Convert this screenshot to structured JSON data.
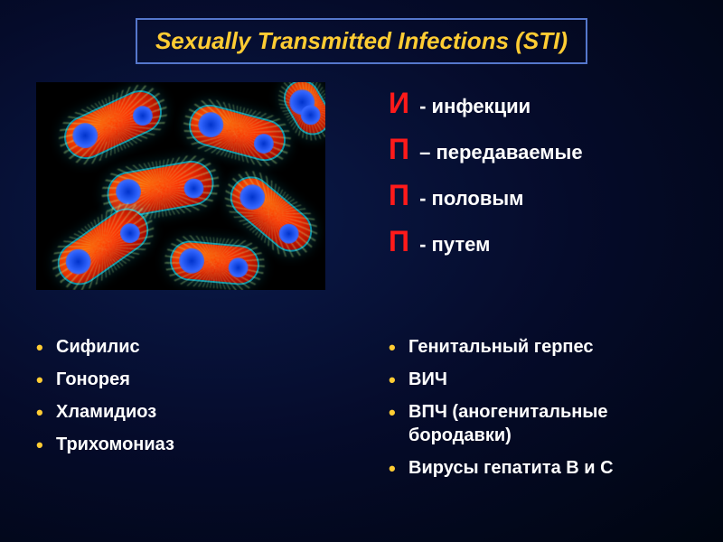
{
  "title": {
    "text": "Sexually Transmitted Infections (STI)",
    "color": "#ffcc33",
    "border_color": "#5577cc"
  },
  "acronym": [
    {
      "letter": "И",
      "word": "- инфекции",
      "color": "#ff1a1a"
    },
    {
      "letter": "П",
      "word": "– передаваемые",
      "color": "#ff1a1a"
    },
    {
      "letter": "П",
      "word": "- половым",
      "color": "#ff1a1a"
    },
    {
      "letter": "П",
      "word": "- путем",
      "color": "#ff1a1a"
    }
  ],
  "left_list": {
    "bullet_color": "#ffcc33",
    "items": [
      "Сифилис",
      "Гонорея",
      "Хламидиоз",
      "Трихомониаз"
    ]
  },
  "right_list": {
    "bullet_color": "#ffcc33",
    "items": [
      "Генитальный герпес",
      "ВИЧ",
      "ВПЧ (аногенитальные бородавки)",
      "Вирусы гепатита В и С"
    ]
  },
  "image": {
    "description": "bacteria-micrograph",
    "background": "#000000",
    "cell_body_color": "#ff4400",
    "cell_spot_color": "#1a3fff",
    "cilia_color": "#c8ff96",
    "glow_color": "#14dcff"
  },
  "colors": {
    "slide_bg_inner": "#0a1a4a",
    "slide_bg_outer": "#000510",
    "text": "#ffffff"
  }
}
